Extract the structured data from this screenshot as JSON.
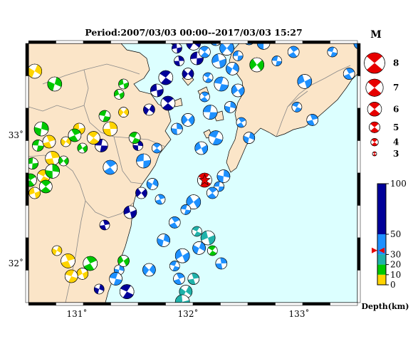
{
  "title": "Period:2007/03/03 00:00--2017/03/03 15:27",
  "map": {
    "x_ticks": [
      {
        "lon": 131,
        "label": "131˚"
      },
      {
        "lon": 132,
        "label": "132˚"
      },
      {
        "lon": 133,
        "label": "133˚"
      }
    ],
    "y_ticks": [
      {
        "lat": 33,
        "label": "33˚"
      },
      {
        "lat": 32,
        "label": "32˚"
      }
    ],
    "colors": {
      "sea": "#dcffff",
      "land": "#fbe5c8",
      "border": "#888888",
      "coast": "#000000"
    },
    "focus_event": {
      "lon": 132.15,
      "lat": 32.65,
      "magnitude": 6.0,
      "color": "#e60000",
      "marker": "red star"
    },
    "events": [
      {
        "lon": 132.28,
        "lat": 32.6,
        "color": "#1e90ff"
      },
      {
        "lon": 132.22,
        "lat": 32.55,
        "color": "#1e90ff"
      },
      {
        "lon": 132.32,
        "lat": 32.68,
        "color": "#1e90ff"
      },
      {
        "lon": 132.05,
        "lat": 32.48,
        "color": "#1e90ff"
      },
      {
        "lon": 131.98,
        "lat": 32.42,
        "color": "#1e90ff"
      },
      {
        "lon": 131.88,
        "lat": 32.32,
        "color": "#1e90ff"
      },
      {
        "lon": 131.78,
        "lat": 32.18,
        "color": "#1e90ff"
      },
      {
        "lon": 131.95,
        "lat": 32.06,
        "color": "#1e90ff"
      },
      {
        "lon": 131.88,
        "lat": 31.98,
        "color": "#1e90ff"
      },
      {
        "lon": 131.92,
        "lat": 31.88,
        "color": "#1e90ff"
      },
      {
        "lon": 132.1,
        "lat": 32.12,
        "color": "#1e90ff"
      },
      {
        "lon": 132.18,
        "lat": 32.2,
        "color": "#20b2aa"
      },
      {
        "lon": 132.08,
        "lat": 32.25,
        "color": "#20b2aa"
      },
      {
        "lon": 132.05,
        "lat": 31.88,
        "color": "#20b2aa"
      },
      {
        "lon": 131.98,
        "lat": 31.78,
        "color": "#20b2aa"
      },
      {
        "lon": 131.95,
        "lat": 31.7,
        "color": "#20b2aa"
      },
      {
        "lon": 132.22,
        "lat": 32.1,
        "color": "#00c800"
      },
      {
        "lon": 132.3,
        "lat": 32.0,
        "color": "#1e90ff"
      },
      {
        "lon": 131.65,
        "lat": 31.95,
        "color": "#1e90ff"
      },
      {
        "lon": 131.6,
        "lat": 32.8,
        "color": "#1e90ff"
      },
      {
        "lon": 131.72,
        "lat": 32.9,
        "color": "#1e90ff"
      },
      {
        "lon": 131.9,
        "lat": 33.05,
        "color": "#1e90ff"
      },
      {
        "lon": 132.0,
        "lat": 33.12,
        "color": "#1e90ff"
      },
      {
        "lon": 132.2,
        "lat": 33.18,
        "color": "#1e90ff"
      },
      {
        "lon": 132.15,
        "lat": 33.3,
        "color": "#1e90ff"
      },
      {
        "lon": 132.38,
        "lat": 33.22,
        "color": "#1e90ff"
      },
      {
        "lon": 132.45,
        "lat": 33.35,
        "color": "#1e90ff"
      },
      {
        "lon": 132.3,
        "lat": 33.4,
        "color": "#1e90ff"
      },
      {
        "lon": 132.48,
        "lat": 33.1,
        "color": "#1e90ff"
      },
      {
        "lon": 132.55,
        "lat": 32.98,
        "color": "#1e90ff"
      },
      {
        "lon": 132.12,
        "lat": 32.9,
        "color": "#1e90ff"
      },
      {
        "lon": 132.25,
        "lat": 32.98,
        "color": "#1e90ff"
      },
      {
        "lon": 131.75,
        "lat": 32.5,
        "color": "#1e90ff"
      },
      {
        "lon": 131.68,
        "lat": 32.62,
        "color": "#1e90ff"
      },
      {
        "lon": 131.48,
        "lat": 32.4,
        "color": "#000099"
      },
      {
        "lon": 131.45,
        "lat": 31.78,
        "color": "#000099"
      },
      {
        "lon": 131.25,
        "lat": 32.3,
        "color": "#000099"
      },
      {
        "lon": 131.65,
        "lat": 33.2,
        "color": "#000099"
      },
      {
        "lon": 131.72,
        "lat": 33.35,
        "color": "#000099"
      },
      {
        "lon": 131.8,
        "lat": 33.45,
        "color": "#000099"
      },
      {
        "lon": 131.92,
        "lat": 33.58,
        "color": "#000099"
      },
      {
        "lon": 132.0,
        "lat": 33.48,
        "color": "#000099"
      },
      {
        "lon": 132.08,
        "lat": 33.6,
        "color": "#000099"
      },
      {
        "lon": 131.82,
        "lat": 33.25,
        "color": "#000099"
      },
      {
        "lon": 131.55,
        "lat": 32.92,
        "color": "#000099"
      },
      {
        "lon": 131.58,
        "lat": 32.55,
        "color": "#000099"
      },
      {
        "lon": 131.22,
        "lat": 32.92,
        "color": "#000099"
      },
      {
        "lon": 131.3,
        "lat": 32.75,
        "color": "#1e90ff"
      },
      {
        "lon": 131.38,
        "lat": 31.95,
        "color": "#1e90ff"
      },
      {
        "lon": 131.42,
        "lat": 32.02,
        "color": "#00c800"
      },
      {
        "lon": 131.35,
        "lat": 31.88,
        "color": "#1e90ff"
      },
      {
        "lon": 131.12,
        "lat": 32.0,
        "color": "#00c800"
      },
      {
        "lon": 131.2,
        "lat": 31.8,
        "color": "#000099"
      },
      {
        "lon": 131.05,
        "lat": 31.92,
        "color": "#ffd400"
      },
      {
        "lon": 130.95,
        "lat": 31.9,
        "color": "#ffd400"
      },
      {
        "lon": 130.92,
        "lat": 32.02,
        "color": "#ffd400"
      },
      {
        "lon": 130.82,
        "lat": 32.1,
        "color": "#ffd400"
      },
      {
        "lon": 130.62,
        "lat": 32.55,
        "color": "#ffd400"
      },
      {
        "lon": 130.7,
        "lat": 32.68,
        "color": "#ffd400"
      },
      {
        "lon": 130.78,
        "lat": 32.82,
        "color": "#ffd400"
      },
      {
        "lon": 130.9,
        "lat": 32.95,
        "color": "#ffd400"
      },
      {
        "lon": 131.02,
        "lat": 33.05,
        "color": "#ffd400"
      },
      {
        "lon": 131.15,
        "lat": 32.98,
        "color": "#ffd400"
      },
      {
        "lon": 131.3,
        "lat": 33.05,
        "color": "#ffd400"
      },
      {
        "lon": 131.42,
        "lat": 33.18,
        "color": "#ffd400"
      },
      {
        "lon": 130.6,
        "lat": 32.78,
        "color": "#00c800"
      },
      {
        "lon": 130.72,
        "lat": 32.6,
        "color": "#00c800"
      },
      {
        "lon": 130.78,
        "lat": 32.72,
        "color": "#00c800"
      },
      {
        "lon": 130.88,
        "lat": 32.8,
        "color": "#00c800"
      },
      {
        "lon": 130.65,
        "lat": 32.92,
        "color": "#00c800"
      },
      {
        "lon": 130.58,
        "lat": 32.65,
        "color": "#00c800"
      },
      {
        "lon": 130.68,
        "lat": 33.05,
        "color": "#00c800"
      },
      {
        "lon": 131.05,
        "lat": 32.9,
        "color": "#00c800"
      },
      {
        "lon": 131.25,
        "lat": 33.15,
        "color": "#00c800"
      },
      {
        "lon": 130.98,
        "lat": 33.0,
        "color": "#00c800"
      },
      {
        "lon": 130.8,
        "lat": 33.4,
        "color": "#00c800"
      },
      {
        "lon": 131.38,
        "lat": 33.32,
        "color": "#00c800"
      },
      {
        "lon": 131.52,
        "lat": 32.98,
        "color": "#00c800"
      },
      {
        "lon": 130.75,
        "lat": 32.95,
        "color": "#ffd400"
      },
      {
        "lon": 130.62,
        "lat": 33.5,
        "color": "#ffd400"
      },
      {
        "lon": 131.42,
        "lat": 33.4,
        "color": "#00c800"
      },
      {
        "lon": 131.88,
        "lat": 33.75,
        "color": "#000099"
      },
      {
        "lon": 131.95,
        "lat": 33.82,
        "color": "#000099"
      },
      {
        "lon": 132.05,
        "lat": 33.72,
        "color": "#000099"
      },
      {
        "lon": 131.9,
        "lat": 33.68,
        "color": "#000099"
      },
      {
        "lon": 132.15,
        "lat": 33.65,
        "color": "#1e90ff"
      },
      {
        "lon": 132.25,
        "lat": 33.75,
        "color": "#1e90ff"
      },
      {
        "lon": 132.35,
        "lat": 33.68,
        "color": "#1e90ff"
      },
      {
        "lon": 132.45,
        "lat": 33.62,
        "color": "#1e90ff"
      },
      {
        "lon": 132.55,
        "lat": 33.75,
        "color": "#1e90ff"
      },
      {
        "lon": 132.68,
        "lat": 33.72,
        "color": "#1e90ff"
      },
      {
        "lon": 132.62,
        "lat": 33.55,
        "color": "#00c800"
      },
      {
        "lon": 132.8,
        "lat": 33.58,
        "color": "#1e90ff"
      },
      {
        "lon": 132.95,
        "lat": 33.65,
        "color": "#1e90ff"
      },
      {
        "lon": 133.05,
        "lat": 33.78,
        "color": "#1e90ff"
      },
      {
        "lon": 133.15,
        "lat": 33.8,
        "color": "#1e90ff"
      },
      {
        "lon": 133.3,
        "lat": 33.65,
        "color": "#1e90ff"
      },
      {
        "lon": 133.45,
        "lat": 33.48,
        "color": "#1e90ff"
      },
      {
        "lon": 133.55,
        "lat": 33.72,
        "color": "#1e90ff"
      },
      {
        "lon": 133.05,
        "lat": 33.42,
        "color": "#1e90ff"
      },
      {
        "lon": 132.98,
        "lat": 33.22,
        "color": "#1e90ff"
      },
      {
        "lon": 133.12,
        "lat": 33.12,
        "color": "#1e90ff"
      },
      {
        "lon": 132.4,
        "lat": 33.52,
        "color": "#1e90ff"
      },
      {
        "lon": 132.28,
        "lat": 33.58,
        "color": "#1e90ff"
      },
      {
        "lon": 132.18,
        "lat": 33.45,
        "color": "#1e90ff"
      }
    ]
  },
  "legend": {
    "magnitude_title": "M",
    "magnitudes": [
      {
        "label": "8",
        "value": 8
      },
      {
        "label": "7",
        "value": 7
      },
      {
        "label": "6",
        "value": 6
      },
      {
        "label": "5",
        "value": 5
      },
      {
        "label": "4",
        "value": 4
      },
      {
        "label": "3",
        "value": 3
      }
    ],
    "magnitude_color": "#e60000",
    "depth": {
      "title": "Depth(km)",
      "ticks": [
        {
          "label": "100",
          "value": 100
        },
        {
          "label": "50",
          "value": 50
        },
        {
          "label": "30",
          "value": 30
        },
        {
          "label": "20",
          "value": 20
        },
        {
          "label": "10",
          "value": 10
        },
        {
          "label": "0",
          "value": 0
        }
      ],
      "bands": [
        {
          "from": 0,
          "to": 10,
          "color": "#ffd400"
        },
        {
          "from": 10,
          "to": 20,
          "color": "#00c800"
        },
        {
          "from": 20,
          "to": 30,
          "color": "#20b2aa"
        },
        {
          "from": 30,
          "to": 50,
          "color": "#1e90ff"
        },
        {
          "from": 50,
          "to": 100,
          "color": "#000099"
        }
      ],
      "focus_depth": 34
    }
  }
}
